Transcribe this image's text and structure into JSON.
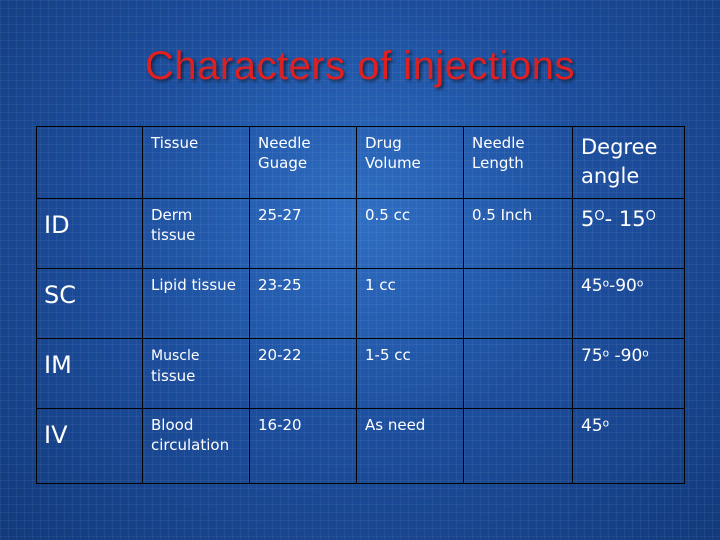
{
  "slide": {
    "title": "Characters of injections"
  },
  "table": {
    "headers": [
      "",
      "Tissue",
      "Needle Guage",
      "Drug Volume",
      "Needle Length",
      "Degree angle"
    ],
    "rows": [
      {
        "route": "ID",
        "tissue": "Derm tissue",
        "gauge": "25-27",
        "volume": "0.5 cc",
        "length": "0.5 Inch",
        "angle_a": "5",
        "angle_b": "- 15",
        "degree_mark": "O"
      },
      {
        "route": "SC",
        "tissue": "Lipid tissue",
        "gauge": "23-25",
        "volume": "1 cc",
        "length": "",
        "angle_a": "45",
        "angle_b": "-90",
        "degree_mark": "o"
      },
      {
        "route": "IM",
        "tissue_line1": "Muscle",
        "tissue_line2": "tissue",
        "gauge": "20-22",
        "volume": "1-5 cc",
        "length": "",
        "angle_a": "75",
        "angle_b": " -90",
        "degree_mark": "o"
      },
      {
        "route": "IV",
        "tissue": "Blood circulation",
        "gauge": "16-20",
        "volume": "As need",
        "length": "",
        "angle_a": "45",
        "degree_mark": "o"
      }
    ]
  }
}
